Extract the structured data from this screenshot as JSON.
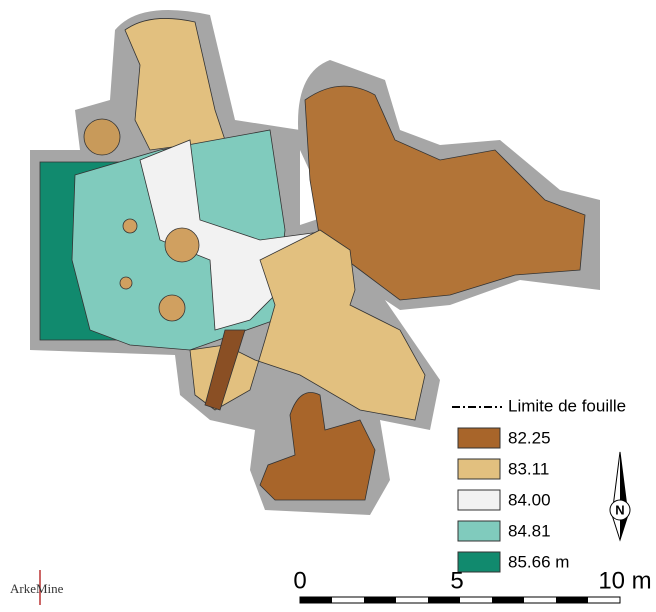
{
  "legend": {
    "boundary_label": "Limite de fouille",
    "items": [
      {
        "label": "82.25",
        "color": "#a8652a"
      },
      {
        "label": "83.11",
        "color": "#e2c07f"
      },
      {
        "label": "84.00",
        "color": "#f2f2f2"
      },
      {
        "label": "84.81",
        "color": "#80cbbd"
      },
      {
        "label": "85.66 m",
        "color": "#118a6e"
      }
    ]
  },
  "scale_bar": {
    "labels": [
      "0",
      "5",
      "10 m"
    ]
  },
  "north_arrow": {
    "label": "N"
  },
  "logo": {
    "text": "ArkeMine"
  }
}
